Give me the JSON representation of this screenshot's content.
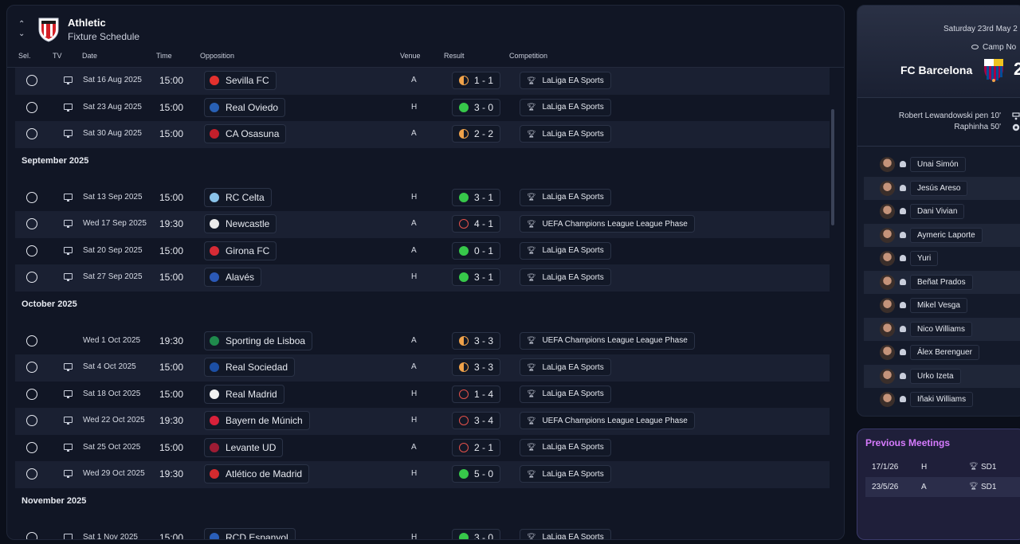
{
  "header": {
    "club": "Athletic",
    "subtitle": "Fixture Schedule"
  },
  "columns": {
    "sel": "Sel.",
    "tv": "TV",
    "date": "Date",
    "time": "Time",
    "opposition": "Opposition",
    "venue": "Venue",
    "result": "Result",
    "competition": "Competition"
  },
  "colors": {
    "win": "#37c84a",
    "loss": "#e4514a",
    "draw": "#f0a24a",
    "accent": "#d77bff"
  },
  "fixtures": [
    {
      "type": "fixture",
      "alt": true,
      "tv": true,
      "date": "Sat 16 Aug 2025",
      "time": "15:00",
      "opp": "Sevilla FC",
      "badge": "#e3312e",
      "venue": "A",
      "outcome": "d",
      "score": "1 - 1",
      "comp": "LaLiga EA Sports"
    },
    {
      "type": "fixture",
      "alt": false,
      "tv": true,
      "date": "Sat 23 Aug 2025",
      "time": "15:00",
      "opp": "Real Oviedo",
      "badge": "#2860b5",
      "venue": "H",
      "outcome": "w",
      "score": "3 - 0",
      "comp": "LaLiga EA Sports"
    },
    {
      "type": "fixture",
      "alt": true,
      "tv": true,
      "date": "Sat 30 Aug 2025",
      "time": "15:00",
      "opp": "CA Osasuna",
      "badge": "#c21f2b",
      "venue": "A",
      "outcome": "d",
      "score": "2 - 2",
      "comp": "LaLiga EA Sports"
    },
    {
      "type": "month",
      "title": "September 2025"
    },
    {
      "type": "fixture",
      "alt": false,
      "tv": true,
      "date": "Sat 13 Sep 2025",
      "time": "15:00",
      "opp": "RC Celta",
      "badge": "#8ac3ea",
      "venue": "H",
      "outcome": "w",
      "score": "3 - 1",
      "comp": "LaLiga EA Sports"
    },
    {
      "type": "fixture",
      "alt": true,
      "tv": true,
      "date": "Wed 17 Sep 2025",
      "time": "19:30",
      "opp": "Newcastle",
      "badge": "#e9e9e9",
      "venue": "A",
      "outcome": "l",
      "score": "4 - 1",
      "comp": "UEFA Champions League League Phase"
    },
    {
      "type": "fixture",
      "alt": false,
      "tv": true,
      "date": "Sat 20 Sep 2025",
      "time": "15:00",
      "opp": "Girona FC",
      "badge": "#d62b35",
      "venue": "A",
      "outcome": "w",
      "score": "0 - 1",
      "comp": "LaLiga EA Sports"
    },
    {
      "type": "fixture",
      "alt": true,
      "tv": true,
      "date": "Sat 27 Sep 2025",
      "time": "15:00",
      "opp": "Alavés",
      "badge": "#2b59b7",
      "venue": "H",
      "outcome": "w",
      "score": "3 - 1",
      "comp": "LaLiga EA Sports"
    },
    {
      "type": "month",
      "title": "October 2025"
    },
    {
      "type": "fixture",
      "alt": false,
      "tv": false,
      "date": "Wed 1 Oct 2025",
      "time": "19:30",
      "opp": "Sporting de Lisboa",
      "badge": "#1f8a4c",
      "venue": "A",
      "outcome": "d",
      "score": "3 - 3",
      "comp": "UEFA Champions League League Phase"
    },
    {
      "type": "fixture",
      "alt": true,
      "tv": true,
      "date": "Sat 4 Oct 2025",
      "time": "15:00",
      "opp": "Real Sociedad",
      "badge": "#1c4fa5",
      "venue": "A",
      "outcome": "d",
      "score": "3 - 3",
      "comp": "LaLiga EA Sports"
    },
    {
      "type": "fixture",
      "alt": false,
      "tv": true,
      "date": "Sat 18 Oct 2025",
      "time": "15:00",
      "opp": "Real Madrid",
      "badge": "#f2f2f2",
      "venue": "H",
      "outcome": "l",
      "score": "1 - 4",
      "comp": "LaLiga EA Sports"
    },
    {
      "type": "fixture",
      "alt": true,
      "tv": true,
      "date": "Wed 22 Oct 2025",
      "time": "19:30",
      "opp": "Bayern de Múnich",
      "badge": "#d8213a",
      "venue": "H",
      "outcome": "l",
      "score": "3 - 4",
      "comp": "UEFA Champions League League Phase"
    },
    {
      "type": "fixture",
      "alt": false,
      "tv": true,
      "date": "Sat 25 Oct 2025",
      "time": "15:00",
      "opp": "Levante UD",
      "badge": "#9e1c34",
      "venue": "A",
      "outcome": "l",
      "score": "2 - 1",
      "comp": "LaLiga EA Sports"
    },
    {
      "type": "fixture",
      "alt": true,
      "tv": true,
      "date": "Wed 29 Oct 2025",
      "time": "19:30",
      "opp": "Atlético de Madrid",
      "badge": "#d52b2f",
      "venue": "H",
      "outcome": "w",
      "score": "5 - 0",
      "comp": "LaLiga EA Sports"
    },
    {
      "type": "month",
      "title": "November 2025"
    },
    {
      "type": "fixture",
      "alt": false,
      "tv": true,
      "date": "Sat 1 Nov 2025",
      "time": "15:00",
      "opp": "RCD Espanyol",
      "badge": "#2a5eb8",
      "venue": "H",
      "outcome": "w",
      "score": "3 - 0",
      "comp": "LaLiga EA Sports"
    }
  ],
  "match": {
    "date": "Saturday 23rd May 2",
    "venue": "Camp No",
    "team": "FC Barcelona",
    "score": "2",
    "scorers": [
      "Robert Lewandowski pen 10'",
      "Raphinha 50'"
    ],
    "lineup": [
      "Unai Simón",
      "Jesús Areso",
      "Dani Vivian",
      "Aymeric Laporte",
      "Yuri",
      "Beñat Prados",
      "Mikel Vesga",
      "Nico Williams",
      "Álex Berenguer",
      "Urko Izeta",
      "Iñaki Williams"
    ]
  },
  "previous": {
    "title": "Previous Meetings",
    "items": [
      {
        "date": "17/1/26",
        "venue": "H",
        "comp": "SD1"
      },
      {
        "date": "23/5/26",
        "venue": "A",
        "comp": "SD1"
      }
    ]
  }
}
